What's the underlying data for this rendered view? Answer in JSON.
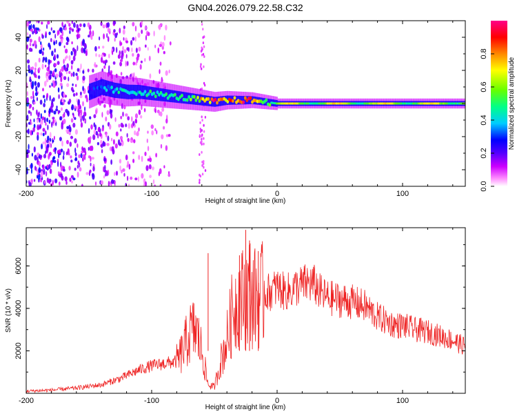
{
  "chart_data": [
    {
      "type": "heatmap",
      "title": "GN04.2026.079.22.58.C32",
      "xlabel": "Height of straight line (km)",
      "ylabel": "Frequency (Hz)",
      "xlim": [
        -200,
        150
      ],
      "ylim": [
        -50,
        50
      ],
      "xticks": [
        -200,
        -100,
        0,
        100
      ],
      "xtick_labels": [
        "-200",
        "-100",
        "0",
        "100"
      ],
      "yticks": [
        -40,
        -20,
        0,
        20,
        40
      ],
      "ytick_labels": [
        "-40",
        "-20",
        "0",
        "20",
        "40"
      ],
      "colorbar": {
        "label": "Normalized spectral amplitude",
        "range": [
          0,
          1
        ],
        "ticks": [
          0,
          0.2,
          0.4,
          0.6,
          0.8
        ],
        "tick_labels": [
          "0.0",
          "0.2",
          "0.4",
          "0.6",
          "0.8"
        ],
        "colors": [
          "#ffffff",
          "#ff00ff",
          "#7a00ff",
          "#0000ff",
          "#00ffff",
          "#00ff00",
          "#ffff00",
          "#ff8000",
          "#ff0000",
          "#ff0080"
        ]
      },
      "ridge": {
        "x": [
          -150,
          -140,
          -130,
          -120,
          -110,
          -100,
          -90,
          -80,
          -70,
          -60,
          -50,
          -40,
          -30,
          -20,
          -10,
          0,
          50,
          100,
          150
        ],
        "frequency": [
          7,
          10,
          8,
          7,
          7,
          6,
          5,
          4,
          3,
          2,
          1,
          2,
          2,
          2,
          1,
          0,
          0,
          0,
          0
        ],
        "peak_amplitude": [
          0.25,
          0.35,
          0.45,
          0.45,
          0.45,
          0.5,
          0.5,
          0.5,
          0.55,
          0.75,
          0.95,
          0.85,
          0.9,
          0.95,
          0.6,
          0.6,
          0.6,
          0.7,
          0.6
        ]
      },
      "noise_region": {
        "x_from": -200,
        "x_to": -85,
        "sparse_until": -60
      }
    },
    {
      "type": "line",
      "xlabel": "Height of straight line (km)",
      "ylabel": "SNR (10 * v/v)",
      "xlim": [
        -200,
        150
      ],
      "ylim": [
        0,
        7800
      ],
      "xticks": [
        -200,
        -100,
        0,
        100
      ],
      "xtick_labels": [
        "-200",
        "-100",
        "0",
        "100"
      ],
      "yticks": [
        2000,
        4000,
        6000
      ],
      "ytick_labels": [
        "2000",
        "4000",
        "6000"
      ],
      "series": [
        {
          "name": "SNR",
          "color": "#ee2222",
          "x": [
            -200,
            -180,
            -160,
            -140,
            -125,
            -110,
            -100,
            -90,
            -80,
            -75,
            -70,
            -65,
            -60,
            -55,
            -50,
            -45,
            -40,
            -35,
            -30,
            -25,
            -22,
            -20,
            -15,
            -10,
            -5,
            0,
            5,
            10,
            15,
            20,
            25,
            30,
            35,
            40,
            50,
            60,
            70,
            80,
            90,
            95,
            100,
            110,
            120,
            130,
            140,
            150
          ],
          "y": [
            100,
            150,
            250,
            400,
            700,
            1100,
            1300,
            1400,
            1500,
            2000,
            2800,
            3000,
            2000,
            400,
            300,
            1500,
            2500,
            4000,
            4500,
            4500,
            5000,
            4500,
            4500,
            4700,
            4800,
            5000,
            4800,
            4800,
            5000,
            5100,
            5200,
            5100,
            4700,
            4500,
            4400,
            4300,
            4100,
            3600,
            3300,
            3200,
            3200,
            3000,
            2900,
            2700,
            2500,
            2200
          ]
        }
      ],
      "annotations": [
        {
          "x": -25,
          "y": 7700,
          "note": "spike"
        },
        {
          "x": -22,
          "y": 7200,
          "note": "spike"
        },
        {
          "x": -15,
          "y": 6700,
          "note": "spike"
        },
        {
          "x": -30,
          "y": 6500,
          "note": "spike"
        },
        {
          "x": -55,
          "y": 6600,
          "note": "spike"
        }
      ]
    }
  ]
}
